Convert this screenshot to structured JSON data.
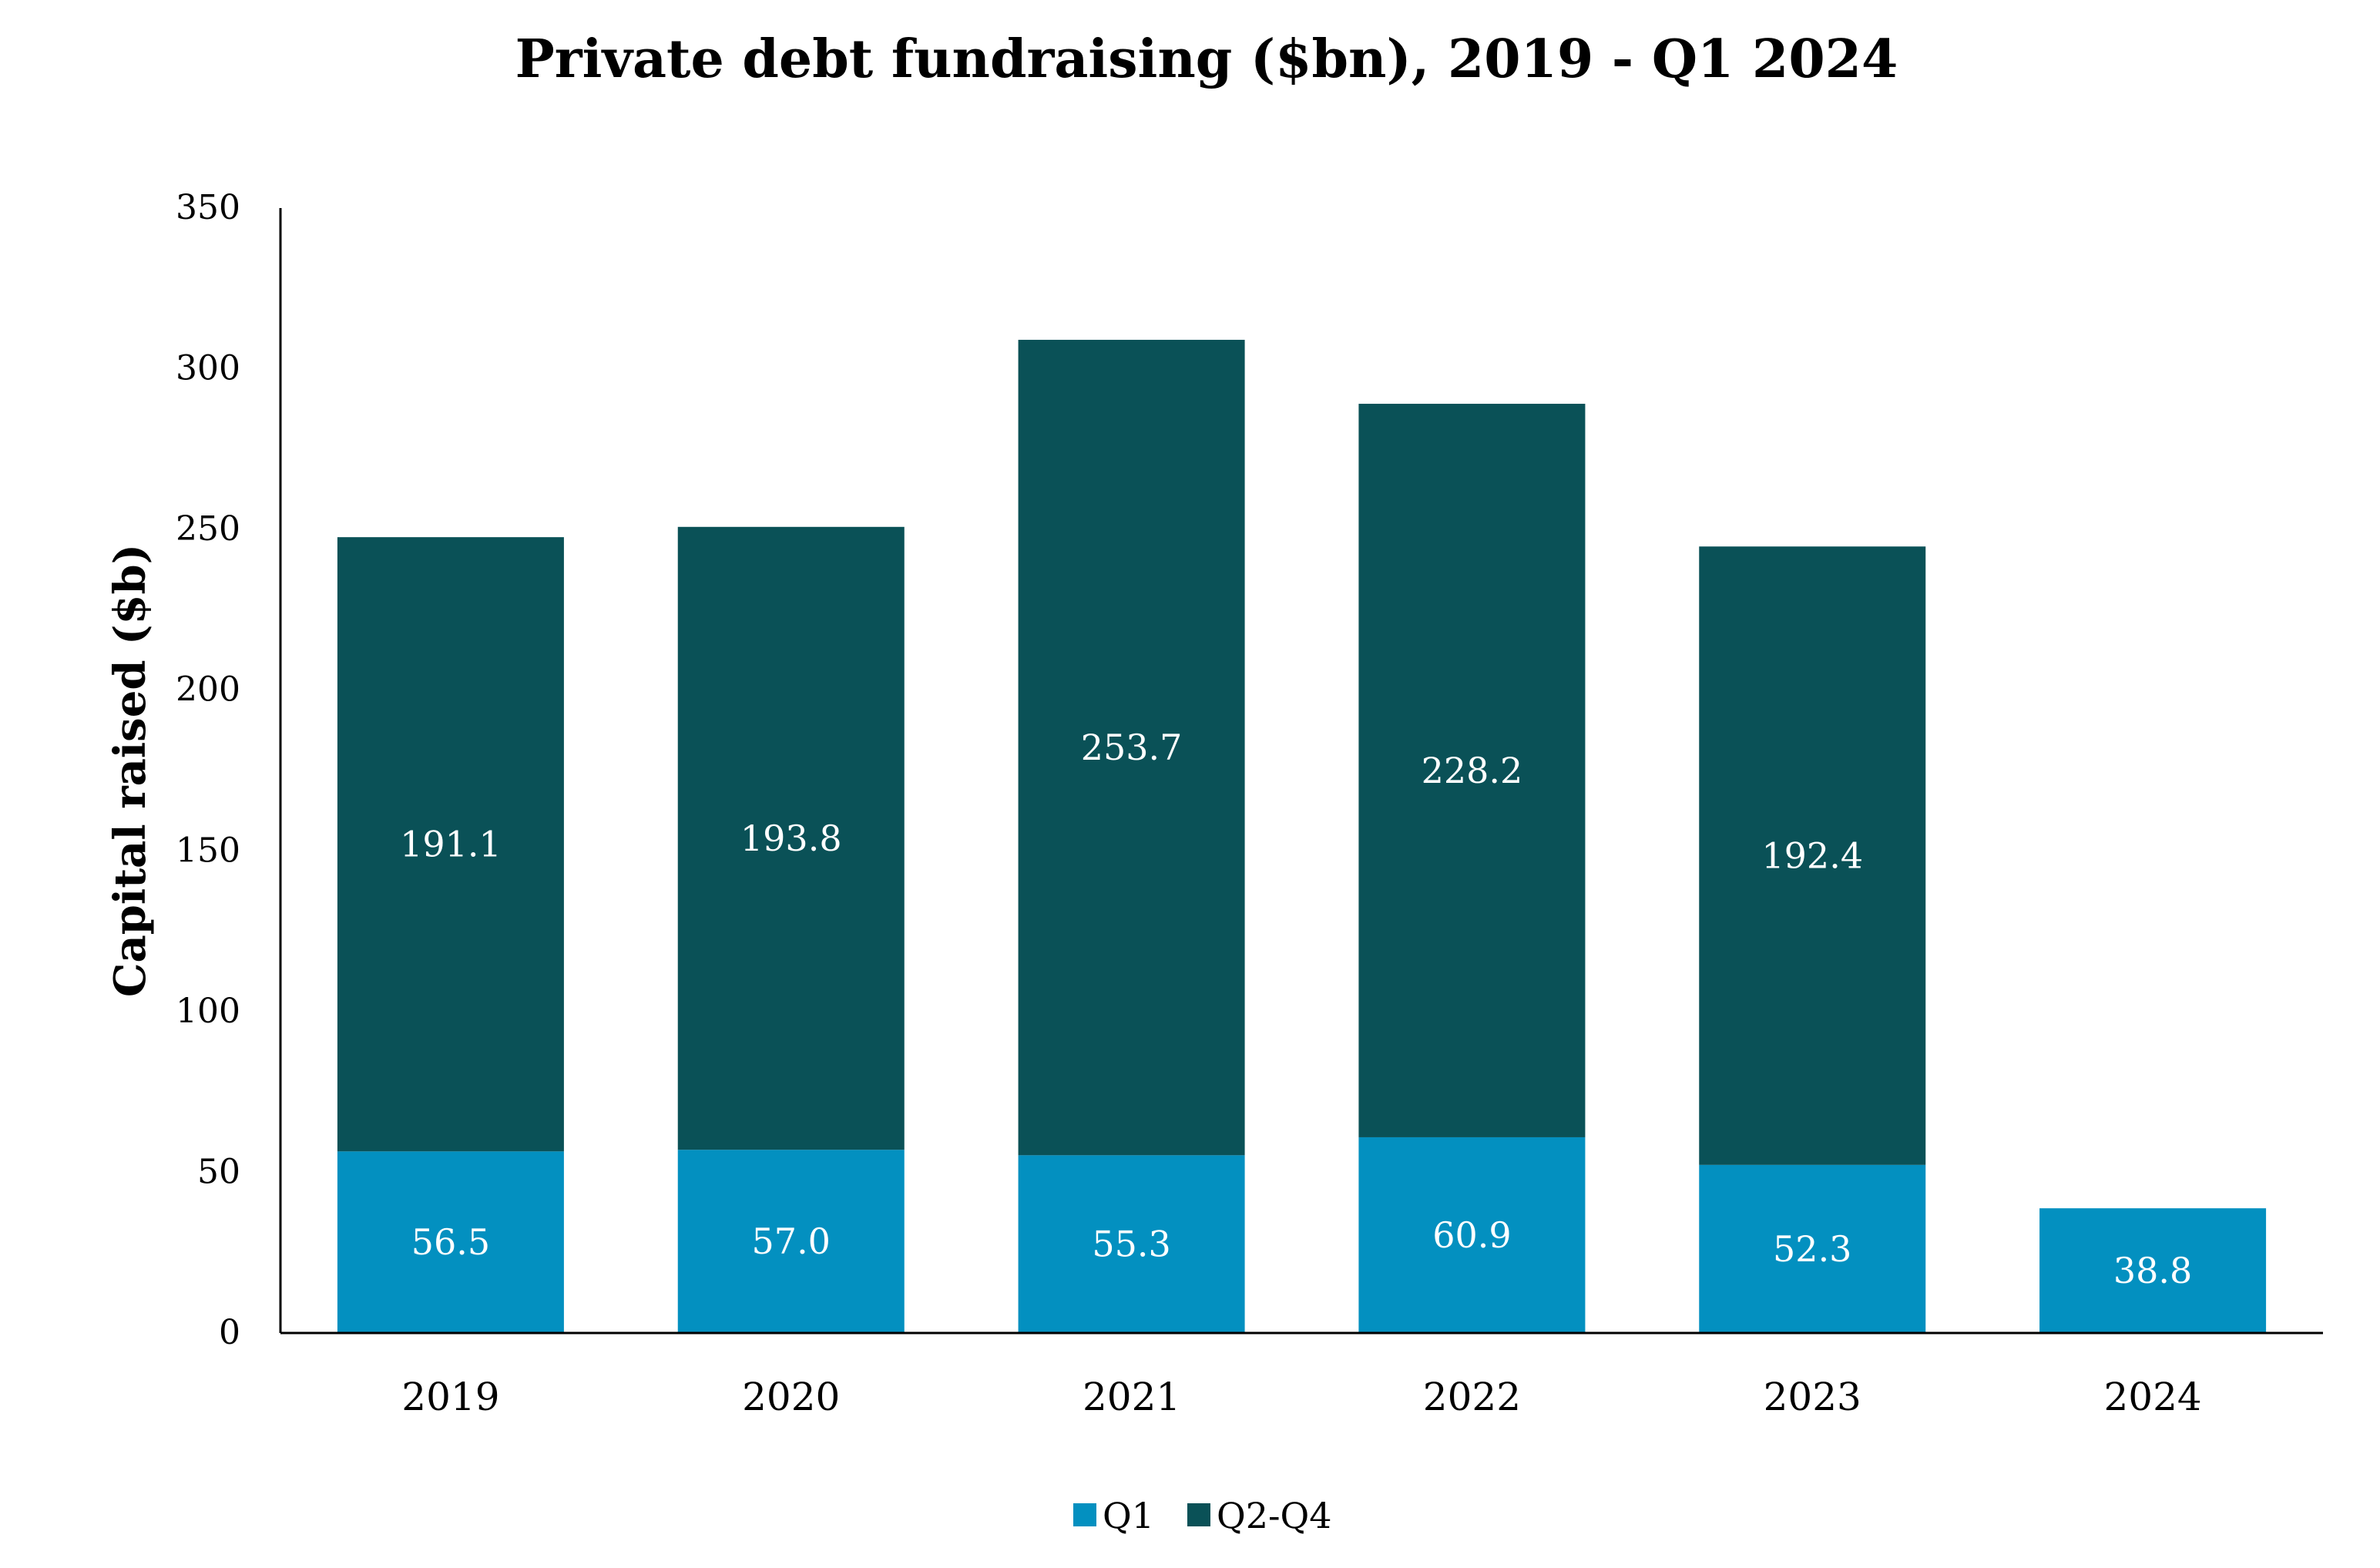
{
  "chart_data": {
    "type": "bar",
    "stacked": true,
    "title": "Private debt fundraising ($bn), 2019 - Q1 2024",
    "xlabel": "",
    "ylabel": "Capital raised ($b)",
    "ylim": [
      0,
      350
    ],
    "yticks": [
      0,
      50,
      100,
      150,
      200,
      250,
      300,
      350
    ],
    "grid": false,
    "legend_position": "bottom-center",
    "categories": [
      "2019",
      "2020",
      "2021",
      "2022",
      "2023",
      "2024"
    ],
    "series": [
      {
        "name": "Q1",
        "color": "#0390C0",
        "values": [
          56.5,
          57.0,
          55.3,
          60.9,
          52.3,
          38.8
        ],
        "labels": [
          "56.5",
          "57.0",
          "55.3",
          "60.9",
          "52.3",
          "38.8"
        ]
      },
      {
        "name": "Q2-Q4",
        "color": "#0A5157",
        "values": [
          191.1,
          193.8,
          253.7,
          228.2,
          192.4,
          null
        ],
        "labels": [
          "191.1",
          "193.8",
          "253.7",
          "228.2",
          "192.4",
          null
        ]
      }
    ]
  }
}
